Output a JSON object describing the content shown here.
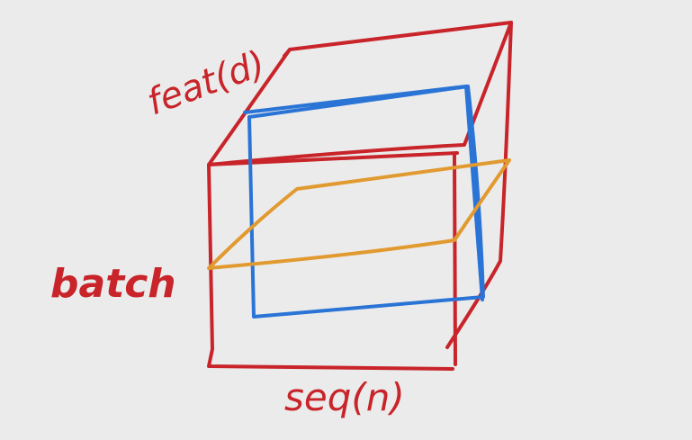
{
  "labels": {
    "feat": "feat(d)",
    "batch": "batch",
    "seq": "seq(n)"
  },
  "colors": {
    "background": "#ebebeb",
    "cube": "#c8242a",
    "seq_slice": "#2a74d6",
    "batch_slice": "#e19a2f"
  }
}
